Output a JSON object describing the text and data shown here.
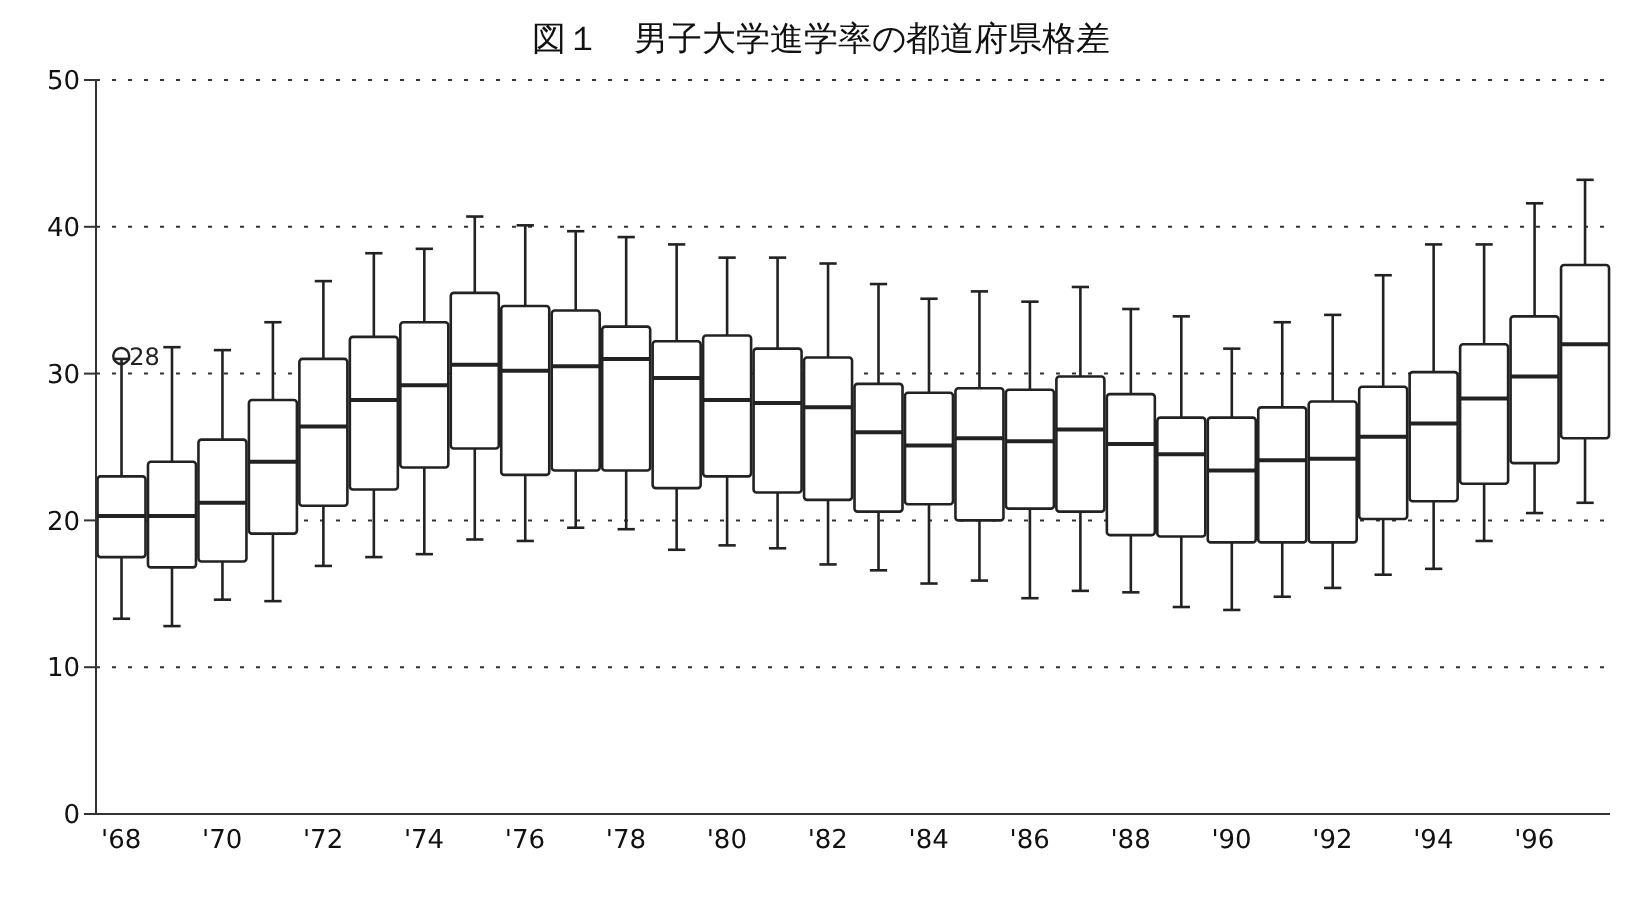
{
  "chart_data": {
    "type": "box",
    "title": "図１　男子大学進学率の都道府県格差",
    "categories": [
      "'68",
      null,
      "'70",
      null,
      "'72",
      null,
      "'74",
      null,
      "'76",
      null,
      "'78",
      null,
      "'80",
      null,
      "'82",
      null,
      "'84",
      null,
      "'86",
      null,
      "'88",
      null,
      "'90",
      null,
      "'92",
      null,
      "'94",
      null,
      "'96",
      null
    ],
    "boxes": [
      {
        "low": 13.3,
        "q1": 17.5,
        "median": 20.3,
        "q3": 23.0,
        "high": 31.0,
        "outliers": [
          31.2
        ]
      },
      {
        "low": 12.8,
        "q1": 16.8,
        "median": 20.3,
        "q3": 24.0,
        "high": 31.8
      },
      {
        "low": 14.6,
        "q1": 17.2,
        "median": 21.2,
        "q3": 25.5,
        "high": 31.6
      },
      {
        "low": 14.5,
        "q1": 19.1,
        "median": 24.0,
        "q3": 28.2,
        "high": 33.5
      },
      {
        "low": 16.9,
        "q1": 21.0,
        "median": 26.4,
        "q3": 31.0,
        "high": 36.3
      },
      {
        "low": 17.5,
        "q1": 22.1,
        "median": 28.2,
        "q3": 32.5,
        "high": 38.2
      },
      {
        "low": 17.7,
        "q1": 23.6,
        "median": 29.2,
        "q3": 33.5,
        "high": 38.5
      },
      {
        "low": 18.7,
        "q1": 24.9,
        "median": 30.6,
        "q3": 35.5,
        "high": 40.7
      },
      {
        "low": 18.6,
        "q1": 23.1,
        "median": 30.2,
        "q3": 34.6,
        "high": 40.1
      },
      {
        "low": 19.5,
        "q1": 23.4,
        "median": 30.5,
        "q3": 34.3,
        "high": 39.7
      },
      {
        "low": 19.4,
        "q1": 23.4,
        "median": 31.0,
        "q3": 33.2,
        "high": 39.3
      },
      {
        "low": 18.0,
        "q1": 22.2,
        "median": 29.7,
        "q3": 32.2,
        "high": 38.8
      },
      {
        "low": 18.3,
        "q1": 23.0,
        "median": 28.2,
        "q3": 32.6,
        "high": 37.9
      },
      {
        "low": 18.1,
        "q1": 21.9,
        "median": 28.0,
        "q3": 31.7,
        "high": 37.9
      },
      {
        "low": 17.0,
        "q1": 21.4,
        "median": 27.7,
        "q3": 31.1,
        "high": 37.5
      },
      {
        "low": 16.6,
        "q1": 20.6,
        "median": 26.0,
        "q3": 29.3,
        "high": 36.1
      },
      {
        "low": 15.7,
        "q1": 21.1,
        "median": 25.1,
        "q3": 28.7,
        "high": 35.1
      },
      {
        "low": 15.9,
        "q1": 20.0,
        "median": 25.6,
        "q3": 29.0,
        "high": 35.6
      },
      {
        "low": 14.7,
        "q1": 20.8,
        "median": 25.4,
        "q3": 28.9,
        "high": 34.9
      },
      {
        "low": 15.2,
        "q1": 20.6,
        "median": 26.2,
        "q3": 29.8,
        "high": 35.9
      },
      {
        "low": 15.1,
        "q1": 19.0,
        "median": 25.2,
        "q3": 28.6,
        "high": 34.4
      },
      {
        "low": 14.1,
        "q1": 18.9,
        "median": 24.5,
        "q3": 27.0,
        "high": 33.9
      },
      {
        "low": 13.9,
        "q1": 18.5,
        "median": 23.4,
        "q3": 27.0,
        "high": 31.7
      },
      {
        "low": 14.8,
        "q1": 18.5,
        "median": 24.1,
        "q3": 27.7,
        "high": 33.5
      },
      {
        "low": 15.4,
        "q1": 18.5,
        "median": 24.2,
        "q3": 28.1,
        "high": 34.0
      },
      {
        "low": 16.3,
        "q1": 20.1,
        "median": 25.7,
        "q3": 29.1,
        "high": 36.7
      },
      {
        "low": 16.7,
        "q1": 21.3,
        "median": 26.6,
        "q3": 30.1,
        "high": 38.8
      },
      {
        "low": 18.6,
        "q1": 22.5,
        "median": 28.3,
        "q3": 32.0,
        "high": 38.8
      },
      {
        "low": 20.5,
        "q1": 23.9,
        "median": 29.8,
        "q3": 33.9,
        "high": 41.6
      },
      {
        "low": 21.2,
        "q1": 25.6,
        "median": 32.0,
        "q3": 37.4,
        "high": 43.2
      }
    ],
    "ylim": [
      0,
      50
    ],
    "yticks": [
      0,
      10,
      20,
      30,
      40,
      50
    ],
    "grid": "y",
    "annotations": [
      {
        "text": "28",
        "x": "'68",
        "y": 31.2
      }
    ]
  }
}
